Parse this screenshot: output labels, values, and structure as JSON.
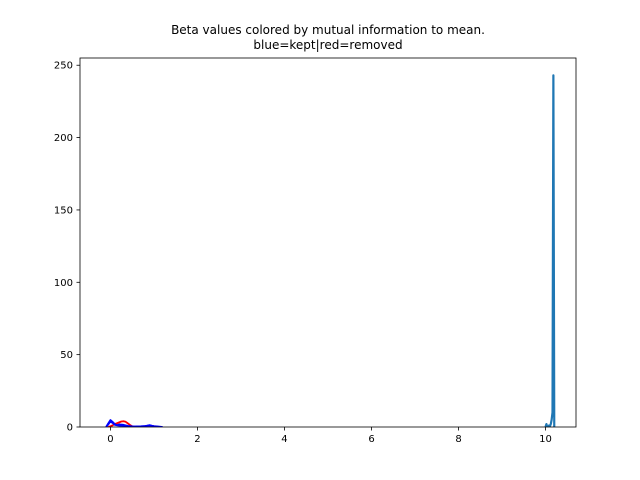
{
  "chart_data": {
    "type": "line",
    "title": "Beta values colored by mutual information to mean.",
    "subtitle": "blue=kept|red=removed",
    "xlabel": "",
    "ylabel": "",
    "xlim": [
      -0.7,
      10.7
    ],
    "ylim": [
      0,
      255
    ],
    "xticks": [
      0,
      2,
      4,
      6,
      8,
      10
    ],
    "yticks": [
      0,
      50,
      100,
      150,
      200,
      250
    ],
    "xtick_labels": [
      "0",
      "2",
      "4",
      "6",
      "8",
      "10"
    ],
    "ytick_labels": [
      "0",
      "50",
      "100",
      "150",
      "200",
      "250"
    ],
    "grid": false,
    "legend": "none",
    "colors": {
      "kept": "#0000ff",
      "removed": "#ff0000",
      "spike": "#1f77b4"
    },
    "series": [
      {
        "color": "removed",
        "x": [
          -0.05,
          0.0,
          0.05,
          0.1,
          0.15,
          0.2,
          0.25,
          0.3,
          0.35,
          0.4,
          0.45,
          0.5,
          0.55
        ],
        "y": [
          0,
          0.5,
          1.2,
          2,
          2.6,
          3.2,
          3.8,
          4,
          3.6,
          2.5,
          1.4,
          0.5,
          0
        ]
      },
      {
        "color": "removed",
        "x": [
          0.7,
          0.8,
          0.9,
          1.0,
          1.1
        ],
        "y": [
          0,
          0.6,
          0.9,
          0.5,
          0
        ]
      },
      {
        "color": "kept",
        "x": [
          -0.1,
          -0.05,
          0.0,
          0.05,
          0.1,
          0.15,
          0.2,
          0.3,
          0.4,
          0.5,
          0.6
        ],
        "y": [
          0,
          2.5,
          4.8,
          3.5,
          2,
          1.2,
          1.8,
          1.5,
          0.8,
          0.4,
          0
        ]
      },
      {
        "color": "kept",
        "x": [
          -0.1,
          -0.05,
          0.0,
          0.05,
          0.1,
          0.2,
          0.3,
          0.4,
          0.5
        ],
        "y": [
          0,
          1.8,
          3.8,
          2.8,
          1.5,
          1.0,
          0.7,
          0.3,
          0
        ]
      },
      {
        "color": "kept",
        "x": [
          0.4,
          0.5,
          0.6,
          0.7,
          0.8,
          0.9,
          1.0,
          1.1,
          1.2
        ],
        "y": [
          0,
          0.3,
          0.4,
          0.5,
          0.7,
          1.0,
          0.6,
          0.3,
          0
        ]
      },
      {
        "color": "kept",
        "x": [
          0.6,
          0.7,
          0.8,
          0.9,
          1.0,
          1.1
        ],
        "y": [
          0,
          0.3,
          0.6,
          1.3,
          0.4,
          0
        ]
      },
      {
        "color": "spike",
        "x": [
          10.0,
          10.02,
          10.04,
          10.06,
          10.08,
          10.1,
          10.12,
          10.14,
          10.16,
          10.18,
          10.2
        ],
        "y": [
          0,
          2,
          0,
          0,
          1,
          0.5,
          2,
          5,
          10,
          243,
          0
        ]
      }
    ]
  }
}
